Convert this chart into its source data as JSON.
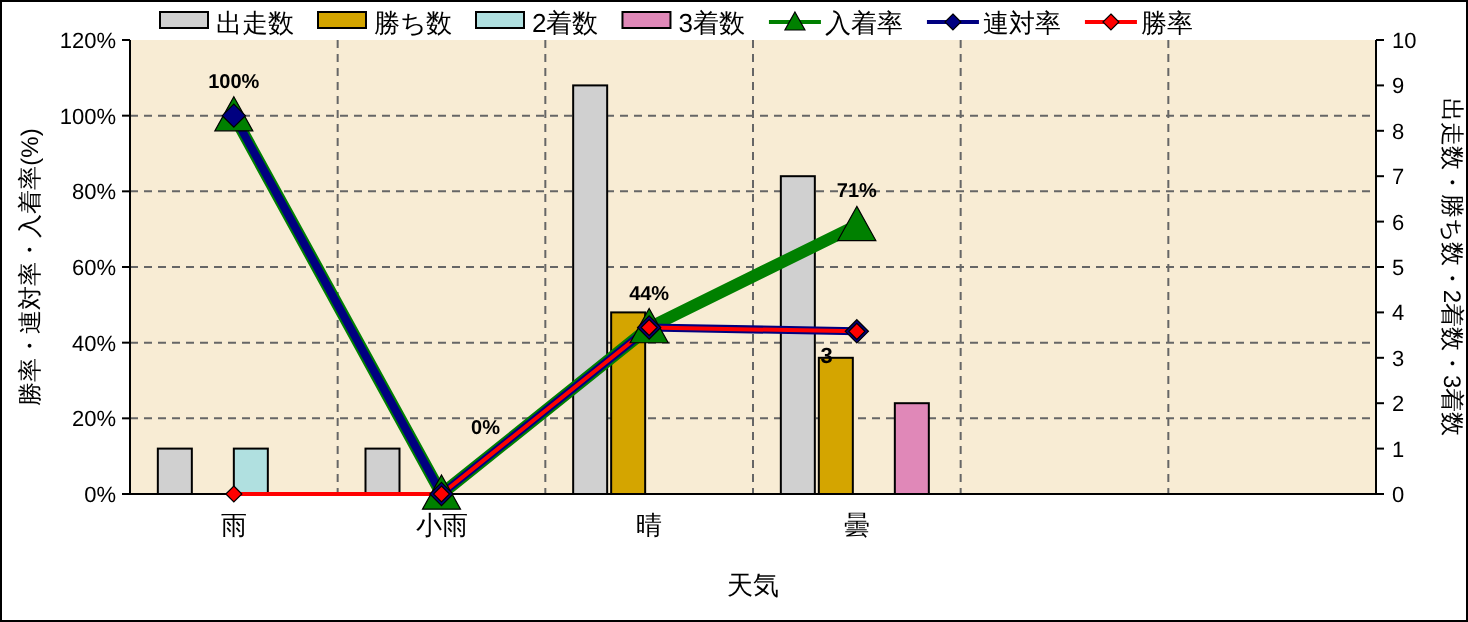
{
  "chart_data": {
    "type": "bar",
    "xlabel": "天気",
    "ylabel": "勝率・連対率・入着率(%)",
    "y2label": "出走数・勝ち数・2着数・3着数",
    "categories": [
      "雨",
      "小雨",
      "晴",
      "曇",
      null,
      null
    ],
    "series": [
      {
        "name": "出走数",
        "color": "#d0d0d0",
        "axis": "y2",
        "values": [
          1,
          1,
          9,
          7,
          null,
          null
        ]
      },
      {
        "name": "勝ち数",
        "color": "#d4a500",
        "axis": "y2",
        "values": [
          0,
          0,
          4,
          3,
          null,
          null
        ]
      },
      {
        "name": "2着数",
        "color": "#b0e0e0",
        "axis": "y2",
        "values": [
          1,
          0,
          0,
          0,
          null,
          null
        ]
      },
      {
        "name": "3着数",
        "color": "#e088b8",
        "axis": "y2",
        "values": [
          0,
          0,
          0,
          2,
          null,
          null
        ]
      },
      {
        "name": "入着率",
        "type": "line",
        "color": "#008000",
        "marker": "triangle",
        "values": [
          100,
          0,
          44,
          71,
          null,
          null
        ],
        "value_labels": [
          "100%",
          "0%",
          "44%",
          "71%",
          null,
          null
        ]
      },
      {
        "name": "連対率",
        "type": "line",
        "color": "#000080",
        "marker": "diamond",
        "values": [
          100,
          0,
          44,
          43,
          null,
          null
        ]
      },
      {
        "name": "勝率",
        "type": "line",
        "color": "#ff0000",
        "marker": "diamond",
        "values": [
          0,
          0,
          44,
          43,
          null,
          null
        ]
      }
    ],
    "ylim": [
      0,
      120
    ],
    "yticks": [
      {
        "value": 0,
        "label": "0%"
      },
      {
        "value": 20,
        "label": "20%"
      },
      {
        "value": 40,
        "label": "40%"
      },
      {
        "value": 60,
        "label": "60%"
      },
      {
        "value": 80,
        "label": "80%"
      },
      {
        "value": 100,
        "label": "100%"
      },
      {
        "value": 120,
        "label": "120%"
      }
    ],
    "y2lim": [
      0,
      10
    ],
    "y2ticks": [
      0,
      1,
      2,
      3,
      4,
      5,
      6,
      7,
      8,
      9,
      10
    ],
    "grid": true,
    "legend": "top",
    "annotations": [
      {
        "text": "3",
        "x": "曇",
        "y": 43
      }
    ]
  }
}
